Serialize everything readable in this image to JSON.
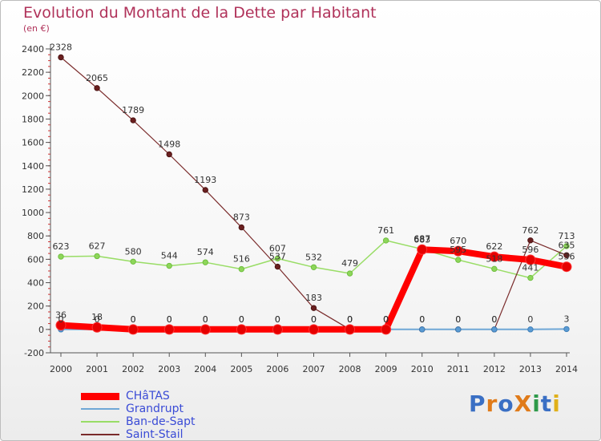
{
  "chart_data": {
    "type": "line",
    "title": "Evolution du Montant de la Dette par Habitant",
    "ylabel": "(en €)",
    "xlabel": "",
    "ylim": [
      -200,
      2400
    ],
    "yticks": [
      -200,
      0,
      200,
      400,
      600,
      800,
      1000,
      1200,
      1400,
      1600,
      1800,
      2000,
      2200,
      2400
    ],
    "categories": [
      "2000",
      "2001",
      "2002",
      "2003",
      "2004",
      "2005",
      "2006",
      "2007",
      "2008",
      "2009",
      "2010",
      "2011",
      "2012",
      "2013",
      "2014"
    ],
    "grid": false,
    "legend_position": "bottom-left",
    "series": [
      {
        "name": "CHâTAS",
        "color": "#ff0000",
        "values": [
          36,
          18,
          0,
          0,
          0,
          0,
          0,
          0,
          0,
          0,
          683,
          670,
          622,
          596,
          536
        ],
        "labels": [
          "36",
          "18",
          "0",
          "0",
          "0",
          "0",
          "0",
          "0",
          "0",
          "0",
          "683",
          "670",
          "622",
          "596",
          "536"
        ]
      },
      {
        "name": "Grandrupt",
        "color": "#6fa7d6",
        "values": [
          0,
          0,
          0,
          0,
          0,
          0,
          0,
          0,
          0,
          0,
          0,
          0,
          0,
          0,
          3
        ],
        "labels": [
          "0",
          "0",
          "0",
          "0",
          "0",
          "0",
          "0",
          "0",
          "0",
          "0",
          "0",
          "0",
          "0",
          "0",
          "3"
        ]
      },
      {
        "name": "Ban-de-Sapt",
        "color": "#99dd66",
        "values": [
          623,
          627,
          580,
          544,
          574,
          516,
          607,
          532,
          479,
          761,
          687,
          595,
          518,
          441,
          713
        ],
        "labels": [
          "623",
          "627",
          "580",
          "544",
          "574",
          "516",
          "607",
          "532",
          "479",
          "761",
          "687",
          "595",
          "518",
          "441",
          "713"
        ]
      },
      {
        "name": "Saint-Stail",
        "color": "#7a2b2b",
        "values": [
          2328,
          2065,
          1789,
          1498,
          1193,
          873,
          537,
          183,
          0,
          0,
          0,
          0,
          0,
          762,
          635
        ],
        "labels": [
          "2328",
          "2065",
          "1789",
          "1498",
          "1193",
          "873",
          "537",
          "183",
          "0",
          "0",
          "0",
          "0",
          "0",
          "762",
          "635"
        ]
      }
    ]
  },
  "branding": {
    "logo_text": "ProXiti"
  }
}
